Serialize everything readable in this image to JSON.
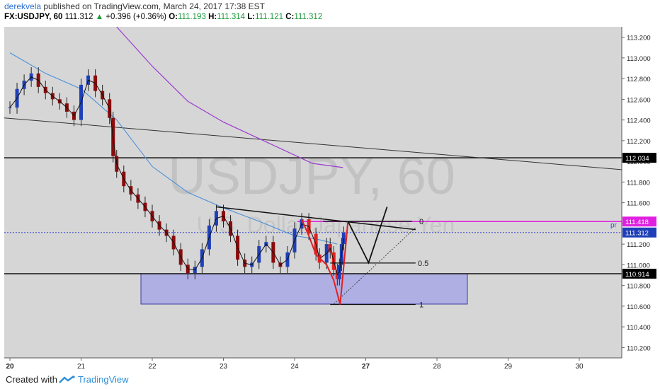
{
  "header": {
    "author": "derekvela",
    "published_text": "published on TradingView.com, March 24, 2017 17:38 EST",
    "symbol": "FX:USDJPY, 60",
    "last": "111.312",
    "change": "+0.396 (+0.36%)",
    "open_label": "O:",
    "open": "111.193",
    "high_label": "H:",
    "high": "111.314",
    "low_label": "L:",
    "low": "111.121",
    "close_label": "C:",
    "close": "111.312"
  },
  "footer": {
    "created_with": "Created with",
    "brand": "TradingView"
  },
  "chart_data": {
    "type": "candlestick",
    "watermark_symbol": "USDJPY, 60",
    "watermark_name": "U.S. Dollar/Japanese Yen",
    "ylim": [
      110.1,
      113.3
    ],
    "y_ticks": [
      110.2,
      110.4,
      110.6,
      110.8,
      111.0,
      111.2,
      111.4,
      111.6,
      111.8,
      112.0,
      112.2,
      112.4,
      112.6,
      112.8,
      113.0,
      113.2
    ],
    "y_tick_labels": [
      "110.200",
      "110.400",
      "110.600",
      "110.800",
      "111.000",
      "111.200",
      "111.400",
      "111.600",
      "111.800",
      "112.000",
      "112.200",
      "112.400",
      "112.600",
      "112.800",
      "113.000",
      "113.200"
    ],
    "x_ticks": [
      {
        "t": 0,
        "label": "20"
      },
      {
        "t": 1,
        "label": "21"
      },
      {
        "t": 2,
        "label": "22"
      },
      {
        "t": 3,
        "label": "23"
      },
      {
        "t": 4,
        "label": "24"
      },
      {
        "t": 5,
        "label": "27"
      },
      {
        "t": 6,
        "label": "28"
      },
      {
        "t": 7,
        "label": "29"
      },
      {
        "t": 8,
        "label": "30"
      }
    ],
    "price_badges": [
      {
        "value": 112.034,
        "label": "112.034",
        "color": "#000000"
      },
      {
        "value": 111.418,
        "label": "111.418",
        "color": "#e020e0"
      },
      {
        "value": 111.312,
        "label": "111.312",
        "color": "#1e3fb8"
      },
      {
        "value": 110.914,
        "label": "110.914",
        "color": "#000000"
      }
    ],
    "fib_labels": [
      {
        "label": "0",
        "value": 111.418
      },
      {
        "label": "0.5",
        "value": 111.017
      },
      {
        "label": "1",
        "value": 110.616
      }
    ],
    "pr_label": "pr",
    "candle_close_path": [
      [
        0.0,
        112.52
      ],
      [
        0.1,
        112.7
      ],
      [
        0.2,
        112.78
      ],
      [
        0.3,
        112.85
      ],
      [
        0.4,
        112.72
      ],
      [
        0.5,
        112.66
      ],
      [
        0.6,
        112.6
      ],
      [
        0.7,
        112.56
      ],
      [
        0.8,
        112.48
      ],
      [
        0.9,
        112.4
      ],
      [
        1.0,
        112.74
      ],
      [
        1.1,
        112.83
      ],
      [
        1.2,
        112.68
      ],
      [
        1.3,
        112.6
      ],
      [
        1.4,
        112.42
      ],
      [
        1.45,
        112.05
      ],
      [
        1.5,
        111.9
      ],
      [
        1.6,
        111.76
      ],
      [
        1.7,
        111.68
      ],
      [
        1.8,
        111.6
      ],
      [
        1.9,
        111.52
      ],
      [
        2.0,
        111.42
      ],
      [
        2.1,
        111.34
      ],
      [
        2.2,
        111.28
      ],
      [
        2.3,
        111.15
      ],
      [
        2.4,
        111.0
      ],
      [
        2.5,
        110.92
      ],
      [
        2.6,
        110.98
      ],
      [
        2.7,
        111.15
      ],
      [
        2.8,
        111.38
      ],
      [
        2.9,
        111.52
      ],
      [
        3.0,
        111.42
      ],
      [
        3.1,
        111.28
      ],
      [
        3.2,
        111.05
      ],
      [
        3.3,
        110.98
      ],
      [
        3.4,
        111.02
      ],
      [
        3.5,
        111.18
      ],
      [
        3.6,
        111.22
      ],
      [
        3.7,
        111.02
      ],
      [
        3.8,
        110.98
      ],
      [
        3.9,
        111.12
      ],
      [
        4.0,
        111.35
      ],
      [
        4.1,
        111.44
      ],
      [
        4.2,
        111.3
      ],
      [
        4.3,
        111.1
      ],
      [
        4.35,
        111.02
      ],
      [
        4.45,
        111.2
      ],
      [
        4.5,
        111.12
      ],
      [
        4.55,
        110.95
      ],
      [
        4.6,
        110.86
      ],
      [
        4.63,
        111.0
      ],
      [
        4.66,
        111.2
      ],
      [
        4.69,
        111.31
      ]
    ],
    "series": [
      {
        "name": "",
        "color": "#000000"
      },
      {
        "name": "",
        "color": "#4a90d9"
      },
      {
        "name": "",
        "color": "#9a3ad1"
      }
    ]
  }
}
